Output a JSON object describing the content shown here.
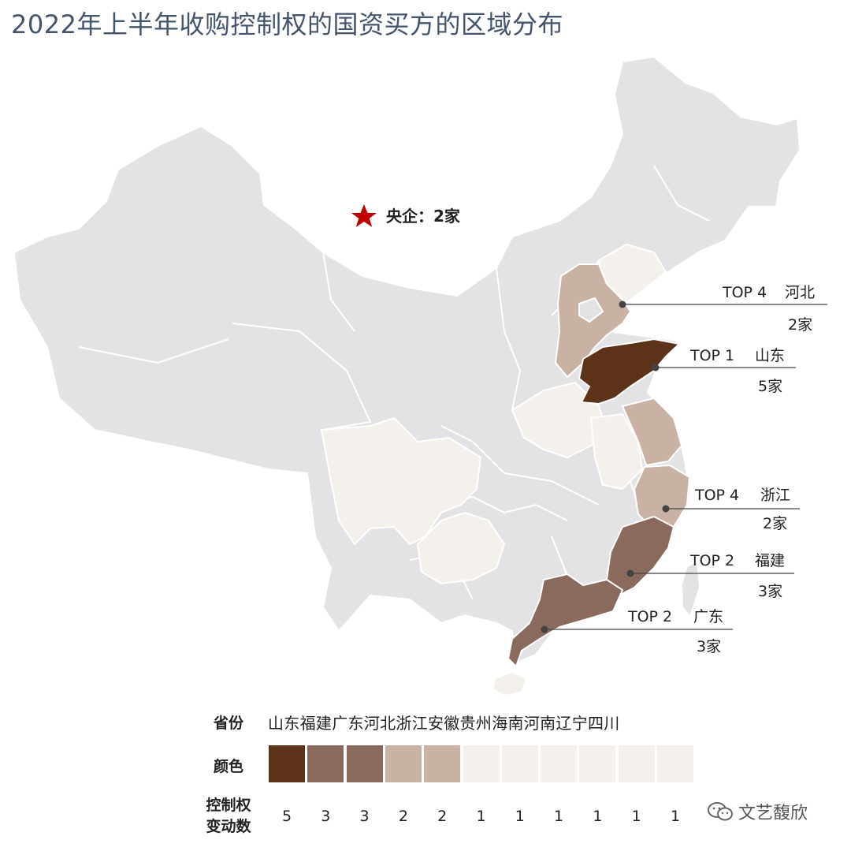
{
  "title": "2022年上半年收购控制权的国资买方的区域分布",
  "central_marker": {
    "icon": "star-icon",
    "label": "央企：2家",
    "color": "#c00000"
  },
  "callouts": [
    {
      "rank": "TOP 4",
      "province": "河北",
      "count": "2家"
    },
    {
      "rank": "TOP 1",
      "province": "山东",
      "count": "5家"
    },
    {
      "rank": "TOP 4",
      "province": "浙江",
      "count": "2家"
    },
    {
      "rank": "TOP 2",
      "province": "福建",
      "count": "3家"
    },
    {
      "rank": "TOP 2",
      "province": "广东",
      "count": "3家"
    }
  ],
  "legend": {
    "province_label": "省份",
    "provinces": "山东福建广东河北浙江安徽贵州海南河南辽宁四川",
    "color_label": "颜色",
    "count_label_line1": "控制权",
    "count_label_line2": "变动数",
    "colors": [
      "#5c3218",
      "#8a6a5c",
      "#8a6a5c",
      "#c9b2a3",
      "#c9b2a3",
      "#f4f0eb",
      "#f4f0eb",
      "#f4f0eb",
      "#f4f0eb",
      "#f4f0eb",
      "#f4f0eb"
    ],
    "counts": [
      "5",
      "3",
      "3",
      "2",
      "2",
      "1",
      "1",
      "1",
      "1",
      "1",
      "1"
    ]
  },
  "map_colors": {
    "base": "#e3e2e4",
    "border": "#ffffff"
  },
  "watermark": {
    "icon": "wechat-icon",
    "text": "文艺馥欣"
  }
}
